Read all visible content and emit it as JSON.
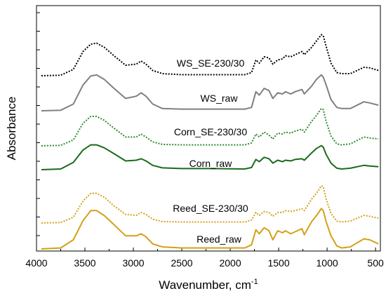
{
  "chart_data": {
    "type": "line",
    "xlabel": "Wavenumber, cm",
    "xlabel_superscript": "-1",
    "ylabel": "Absorbance",
    "xlim": [
      4000,
      450
    ],
    "x_reversed": true,
    "y_tick_labels_shown": false,
    "grid": false,
    "legend": "none (inline labels)",
    "x_ticks": [
      {
        "value": 4000,
        "label": "4000"
      },
      {
        "value": 3500,
        "label": "3500"
      },
      {
        "value": 3000,
        "label": "3000"
      },
      {
        "value": 2500,
        "label": "2500"
      },
      {
        "value": 2000,
        "label": "2000"
      },
      {
        "value": 1500,
        "label": "1500"
      },
      {
        "value": 1000,
        "label": "1000"
      },
      {
        "value": 500,
        "label": "500"
      }
    ],
    "series": [
      {
        "name": "WS_SE-230/30",
        "color": "#000000",
        "style": "dotted",
        "baseline": 0.7,
        "scale": 1.05,
        "points": [
          [
            3950,
            0.0
          ],
          [
            3750,
            0.01
          ],
          [
            3620,
            0.12
          ],
          [
            3520,
            0.46
          ],
          [
            3440,
            0.6
          ],
          [
            3380,
            0.62
          ],
          [
            3300,
            0.54
          ],
          [
            3200,
            0.38
          ],
          [
            3080,
            0.2
          ],
          [
            2970,
            0.22
          ],
          [
            2920,
            0.28
          ],
          [
            2870,
            0.22
          ],
          [
            2800,
            0.1
          ],
          [
            2700,
            0.04
          ],
          [
            2500,
            0.02
          ],
          [
            2200,
            0.02
          ],
          [
            1850,
            0.02
          ],
          [
            1780,
            0.06
          ],
          [
            1735,
            0.3
          ],
          [
            1700,
            0.24
          ],
          [
            1650,
            0.36
          ],
          [
            1600,
            0.34
          ],
          [
            1560,
            0.22
          ],
          [
            1510,
            0.3
          ],
          [
            1460,
            0.32
          ],
          [
            1430,
            0.38
          ],
          [
            1375,
            0.36
          ],
          [
            1330,
            0.4
          ],
          [
            1260,
            0.46
          ],
          [
            1235,
            0.4
          ],
          [
            1160,
            0.54
          ],
          [
            1110,
            0.66
          ],
          [
            1060,
            0.78
          ],
          [
            1040,
            0.76
          ],
          [
            1010,
            0.56
          ],
          [
            960,
            0.24
          ],
          [
            900,
            0.06
          ],
          [
            850,
            0.04
          ],
          [
            760,
            0.04
          ],
          [
            620,
            0.16
          ],
          [
            560,
            0.15
          ],
          [
            470,
            0.1
          ]
        ]
      },
      {
        "name": "WS_raw",
        "color": "#808080",
        "style": "solid",
        "baseline": 0.0,
        "scale": 1.2,
        "points": [
          [
            3950,
            0.0
          ],
          [
            3750,
            0.01
          ],
          [
            3620,
            0.12
          ],
          [
            3520,
            0.46
          ],
          [
            3440,
            0.62
          ],
          [
            3380,
            0.64
          ],
          [
            3300,
            0.56
          ],
          [
            3200,
            0.4
          ],
          [
            3080,
            0.22
          ],
          [
            2970,
            0.26
          ],
          [
            2920,
            0.32
          ],
          [
            2870,
            0.26
          ],
          [
            2800,
            0.12
          ],
          [
            2700,
            0.04
          ],
          [
            2500,
            0.03
          ],
          [
            2200,
            0.03
          ],
          [
            1850,
            0.03
          ],
          [
            1780,
            0.06
          ],
          [
            1735,
            0.34
          ],
          [
            1700,
            0.28
          ],
          [
            1650,
            0.4
          ],
          [
            1600,
            0.36
          ],
          [
            1560,
            0.22
          ],
          [
            1510,
            0.32
          ],
          [
            1460,
            0.3
          ],
          [
            1430,
            0.34
          ],
          [
            1375,
            0.3
          ],
          [
            1330,
            0.34
          ],
          [
            1260,
            0.38
          ],
          [
            1235,
            0.3
          ],
          [
            1160,
            0.44
          ],
          [
            1110,
            0.56
          ],
          [
            1060,
            0.64
          ],
          [
            1040,
            0.6
          ],
          [
            1010,
            0.46
          ],
          [
            960,
            0.2
          ],
          [
            900,
            0.06
          ],
          [
            850,
            0.04
          ],
          [
            760,
            0.04
          ],
          [
            620,
            0.16
          ],
          [
            560,
            0.14
          ],
          [
            470,
            0.1
          ]
        ]
      },
      {
        "name": "Corn_SE-230/30",
        "color": "#2e8b2e",
        "style": "dotted",
        "baseline": 0.0,
        "scale": 1.0,
        "points": [
          [
            3950,
            0.0
          ],
          [
            3750,
            0.01
          ],
          [
            3620,
            0.12
          ],
          [
            3520,
            0.46
          ],
          [
            3440,
            0.6
          ],
          [
            3380,
            0.6
          ],
          [
            3300,
            0.52
          ],
          [
            3200,
            0.36
          ],
          [
            3080,
            0.18
          ],
          [
            2970,
            0.18
          ],
          [
            2920,
            0.24
          ],
          [
            2870,
            0.18
          ],
          [
            2800,
            0.08
          ],
          [
            2700,
            0.03
          ],
          [
            2500,
            0.02
          ],
          [
            2200,
            0.02
          ],
          [
            1850,
            0.02
          ],
          [
            1780,
            0.06
          ],
          [
            1735,
            0.24
          ],
          [
            1700,
            0.18
          ],
          [
            1650,
            0.28
          ],
          [
            1600,
            0.22
          ],
          [
            1560,
            0.14
          ],
          [
            1510,
            0.26
          ],
          [
            1460,
            0.24
          ],
          [
            1430,
            0.28
          ],
          [
            1375,
            0.26
          ],
          [
            1330,
            0.3
          ],
          [
            1260,
            0.34
          ],
          [
            1235,
            0.28
          ],
          [
            1160,
            0.5
          ],
          [
            1110,
            0.62
          ],
          [
            1060,
            0.76
          ],
          [
            1040,
            0.74
          ],
          [
            1010,
            0.5
          ],
          [
            960,
            0.2
          ],
          [
            900,
            0.04
          ],
          [
            850,
            0.02
          ],
          [
            760,
            0.04
          ],
          [
            620,
            0.18
          ],
          [
            560,
            0.16
          ],
          [
            470,
            0.14
          ]
        ]
      },
      {
        "name": "Corn_raw",
        "color": "#1a6b1a",
        "style": "solid",
        "baseline": 0.0,
        "scale": 0.6,
        "points": [
          [
            3950,
            0.0
          ],
          [
            3750,
            0.02
          ],
          [
            3620,
            0.2
          ],
          [
            3520,
            0.54
          ],
          [
            3440,
            0.68
          ],
          [
            3380,
            0.68
          ],
          [
            3300,
            0.6
          ],
          [
            3200,
            0.44
          ],
          [
            3080,
            0.24
          ],
          [
            2970,
            0.26
          ],
          [
            2920,
            0.3
          ],
          [
            2870,
            0.24
          ],
          [
            2800,
            0.12
          ],
          [
            2700,
            0.05
          ],
          [
            2500,
            0.03
          ],
          [
            2200,
            0.03
          ],
          [
            1850,
            0.02
          ],
          [
            1780,
            0.06
          ],
          [
            1735,
            0.28
          ],
          [
            1700,
            0.22
          ],
          [
            1650,
            0.34
          ],
          [
            1600,
            0.3
          ],
          [
            1560,
            0.18
          ],
          [
            1510,
            0.26
          ],
          [
            1460,
            0.22
          ],
          [
            1430,
            0.26
          ],
          [
            1375,
            0.24
          ],
          [
            1330,
            0.28
          ],
          [
            1260,
            0.3
          ],
          [
            1235,
            0.26
          ],
          [
            1160,
            0.46
          ],
          [
            1110,
            0.58
          ],
          [
            1060,
            0.66
          ],
          [
            1040,
            0.62
          ],
          [
            1010,
            0.42
          ],
          [
            960,
            0.18
          ],
          [
            900,
            0.04
          ],
          [
            850,
            0.02
          ],
          [
            760,
            0.04
          ],
          [
            620,
            0.12
          ],
          [
            560,
            0.1
          ],
          [
            470,
            0.08
          ]
        ]
      },
      {
        "name": "Reed_SE-230/30",
        "color": "#d4a017",
        "style": "dotted",
        "baseline": 0.0,
        "scale": 1.0,
        "points": [
          [
            3950,
            0.0
          ],
          [
            3750,
            0.01
          ],
          [
            3620,
            0.12
          ],
          [
            3520,
            0.46
          ],
          [
            3440,
            0.62
          ],
          [
            3380,
            0.62
          ],
          [
            3300,
            0.54
          ],
          [
            3200,
            0.36
          ],
          [
            3080,
            0.18
          ],
          [
            2970,
            0.16
          ],
          [
            2920,
            0.22
          ],
          [
            2870,
            0.18
          ],
          [
            2800,
            0.08
          ],
          [
            2700,
            0.03
          ],
          [
            2500,
            0.02
          ],
          [
            2200,
            0.02
          ],
          [
            1850,
            0.02
          ],
          [
            1780,
            0.06
          ],
          [
            1735,
            0.22
          ],
          [
            1700,
            0.16
          ],
          [
            1650,
            0.24
          ],
          [
            1600,
            0.22
          ],
          [
            1560,
            0.14
          ],
          [
            1510,
            0.22
          ],
          [
            1460,
            0.22
          ],
          [
            1430,
            0.26
          ],
          [
            1375,
            0.24
          ],
          [
            1330,
            0.26
          ],
          [
            1260,
            0.3
          ],
          [
            1235,
            0.26
          ],
          [
            1160,
            0.5
          ],
          [
            1110,
            0.62
          ],
          [
            1060,
            0.78
          ],
          [
            1040,
            0.76
          ],
          [
            1010,
            0.5
          ],
          [
            960,
            0.2
          ],
          [
            900,
            0.04
          ],
          [
            850,
            0.02
          ],
          [
            760,
            0.04
          ],
          [
            620,
            0.16
          ],
          [
            560,
            0.14
          ],
          [
            470,
            0.1
          ]
        ]
      },
      {
        "name": "Reed_raw",
        "color": "#d4a017",
        "style": "solid",
        "baseline": 0.0,
        "scale": 1.0,
        "points": [
          [
            3950,
            0.0
          ],
          [
            3750,
            0.02
          ],
          [
            3620,
            0.18
          ],
          [
            3520,
            0.56
          ],
          [
            3440,
            0.76
          ],
          [
            3380,
            0.76
          ],
          [
            3300,
            0.66
          ],
          [
            3200,
            0.48
          ],
          [
            3080,
            0.26
          ],
          [
            2970,
            0.26
          ],
          [
            2920,
            0.3
          ],
          [
            2870,
            0.24
          ],
          [
            2800,
            0.1
          ],
          [
            2700,
            0.04
          ],
          [
            2500,
            0.02
          ],
          [
            2200,
            0.02
          ],
          [
            1850,
            0.02
          ],
          [
            1780,
            0.08
          ],
          [
            1735,
            0.38
          ],
          [
            1700,
            0.3
          ],
          [
            1650,
            0.42
          ],
          [
            1600,
            0.36
          ],
          [
            1560,
            0.18
          ],
          [
            1510,
            0.36
          ],
          [
            1460,
            0.32
          ],
          [
            1430,
            0.36
          ],
          [
            1375,
            0.3
          ],
          [
            1330,
            0.34
          ],
          [
            1260,
            0.4
          ],
          [
            1235,
            0.28
          ],
          [
            1160,
            0.54
          ],
          [
            1110,
            0.66
          ],
          [
            1060,
            0.8
          ],
          [
            1040,
            0.76
          ],
          [
            1010,
            0.54
          ],
          [
            960,
            0.26
          ],
          [
            900,
            0.06
          ],
          [
            850,
            0.02
          ],
          [
            760,
            0.04
          ],
          [
            620,
            0.2
          ],
          [
            560,
            0.18
          ],
          [
            470,
            0.1
          ]
        ]
      }
    ]
  }
}
